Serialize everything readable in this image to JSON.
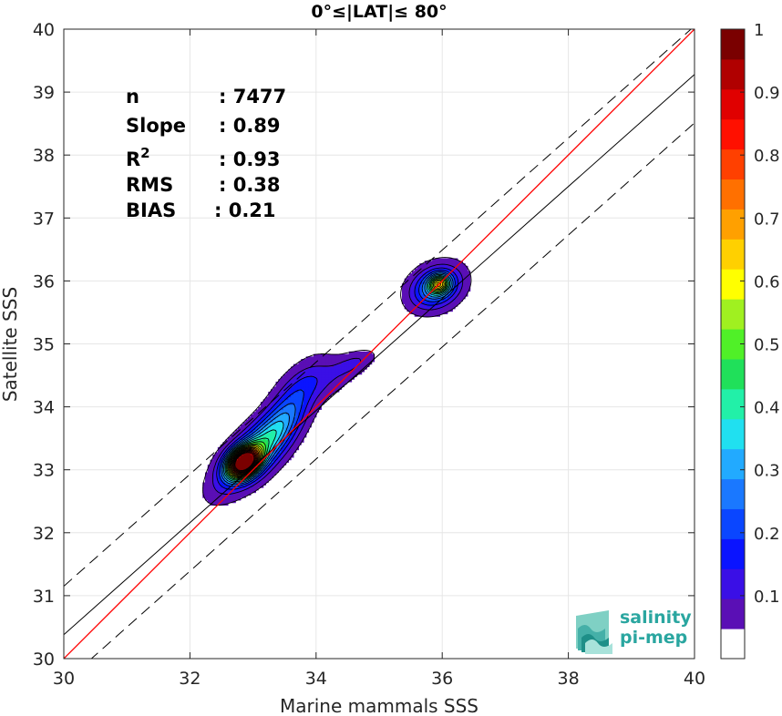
{
  "chart_data": {
    "type": "density-scatter",
    "title": "0°≤|LAT|≤ 80°",
    "xlabel": "Marine mammals SSS",
    "ylabel": "Satellite SSS",
    "xlim": [
      30,
      40
    ],
    "ylim": [
      30,
      40
    ],
    "xticks": [
      "30",
      "32",
      "34",
      "36",
      "38",
      "40"
    ],
    "yticks": [
      "30",
      "31",
      "32",
      "33",
      "34",
      "35",
      "36",
      "37",
      "38",
      "39",
      "40"
    ],
    "grid": true,
    "stats": [
      {
        "label": "n",
        "value": ": 7477"
      },
      {
        "label": "Slope",
        "value": ": 0.89"
      },
      {
        "label": "R",
        "sup": "2",
        "value": ": 0.93"
      },
      {
        "label": "RMS",
        "value": ": 0.38"
      },
      {
        "label": "BIAS",
        "value": ": 0.21"
      }
    ],
    "lines": {
      "identity": {
        "slope": 1.0,
        "intercept": 0.0,
        "color": "#ff0000"
      },
      "fit": {
        "slope": 0.89,
        "intercept": 3.68,
        "color": "#000000"
      },
      "upper_bound": {
        "slope": 0.89,
        "intercept": 4.45,
        "style": "dashed"
      },
      "lower_bound": {
        "slope": 0.89,
        "intercept": 2.91,
        "style": "dashed"
      }
    },
    "density_peaks": [
      {
        "x": 32.85,
        "y": 33.12,
        "level": 1.0
      },
      {
        "x": 35.95,
        "y": 35.95,
        "level": 0.65
      }
    ],
    "colorbar": {
      "min": 0,
      "max": 1,
      "ticks": [
        "0.1",
        "0.2",
        "0.3",
        "0.4",
        "0.5",
        "0.6",
        "0.7",
        "0.8",
        "0.9",
        "1"
      ],
      "colors": [
        "#ffffff",
        "#5a0fb5",
        "#3a0fe6",
        "#0a14ff",
        "#0a46ff",
        "#1a78ff",
        "#22aaff",
        "#20e0f0",
        "#22f0a8",
        "#20e05a",
        "#50f028",
        "#a0f020",
        "#ffff00",
        "#ffd000",
        "#ffa000",
        "#ff7000",
        "#ff4000",
        "#ff1000",
        "#e00000",
        "#b00000",
        "#7a0000"
      ]
    }
  },
  "logo": {
    "line1": "salinity",
    "line2": "pi-mep"
  }
}
